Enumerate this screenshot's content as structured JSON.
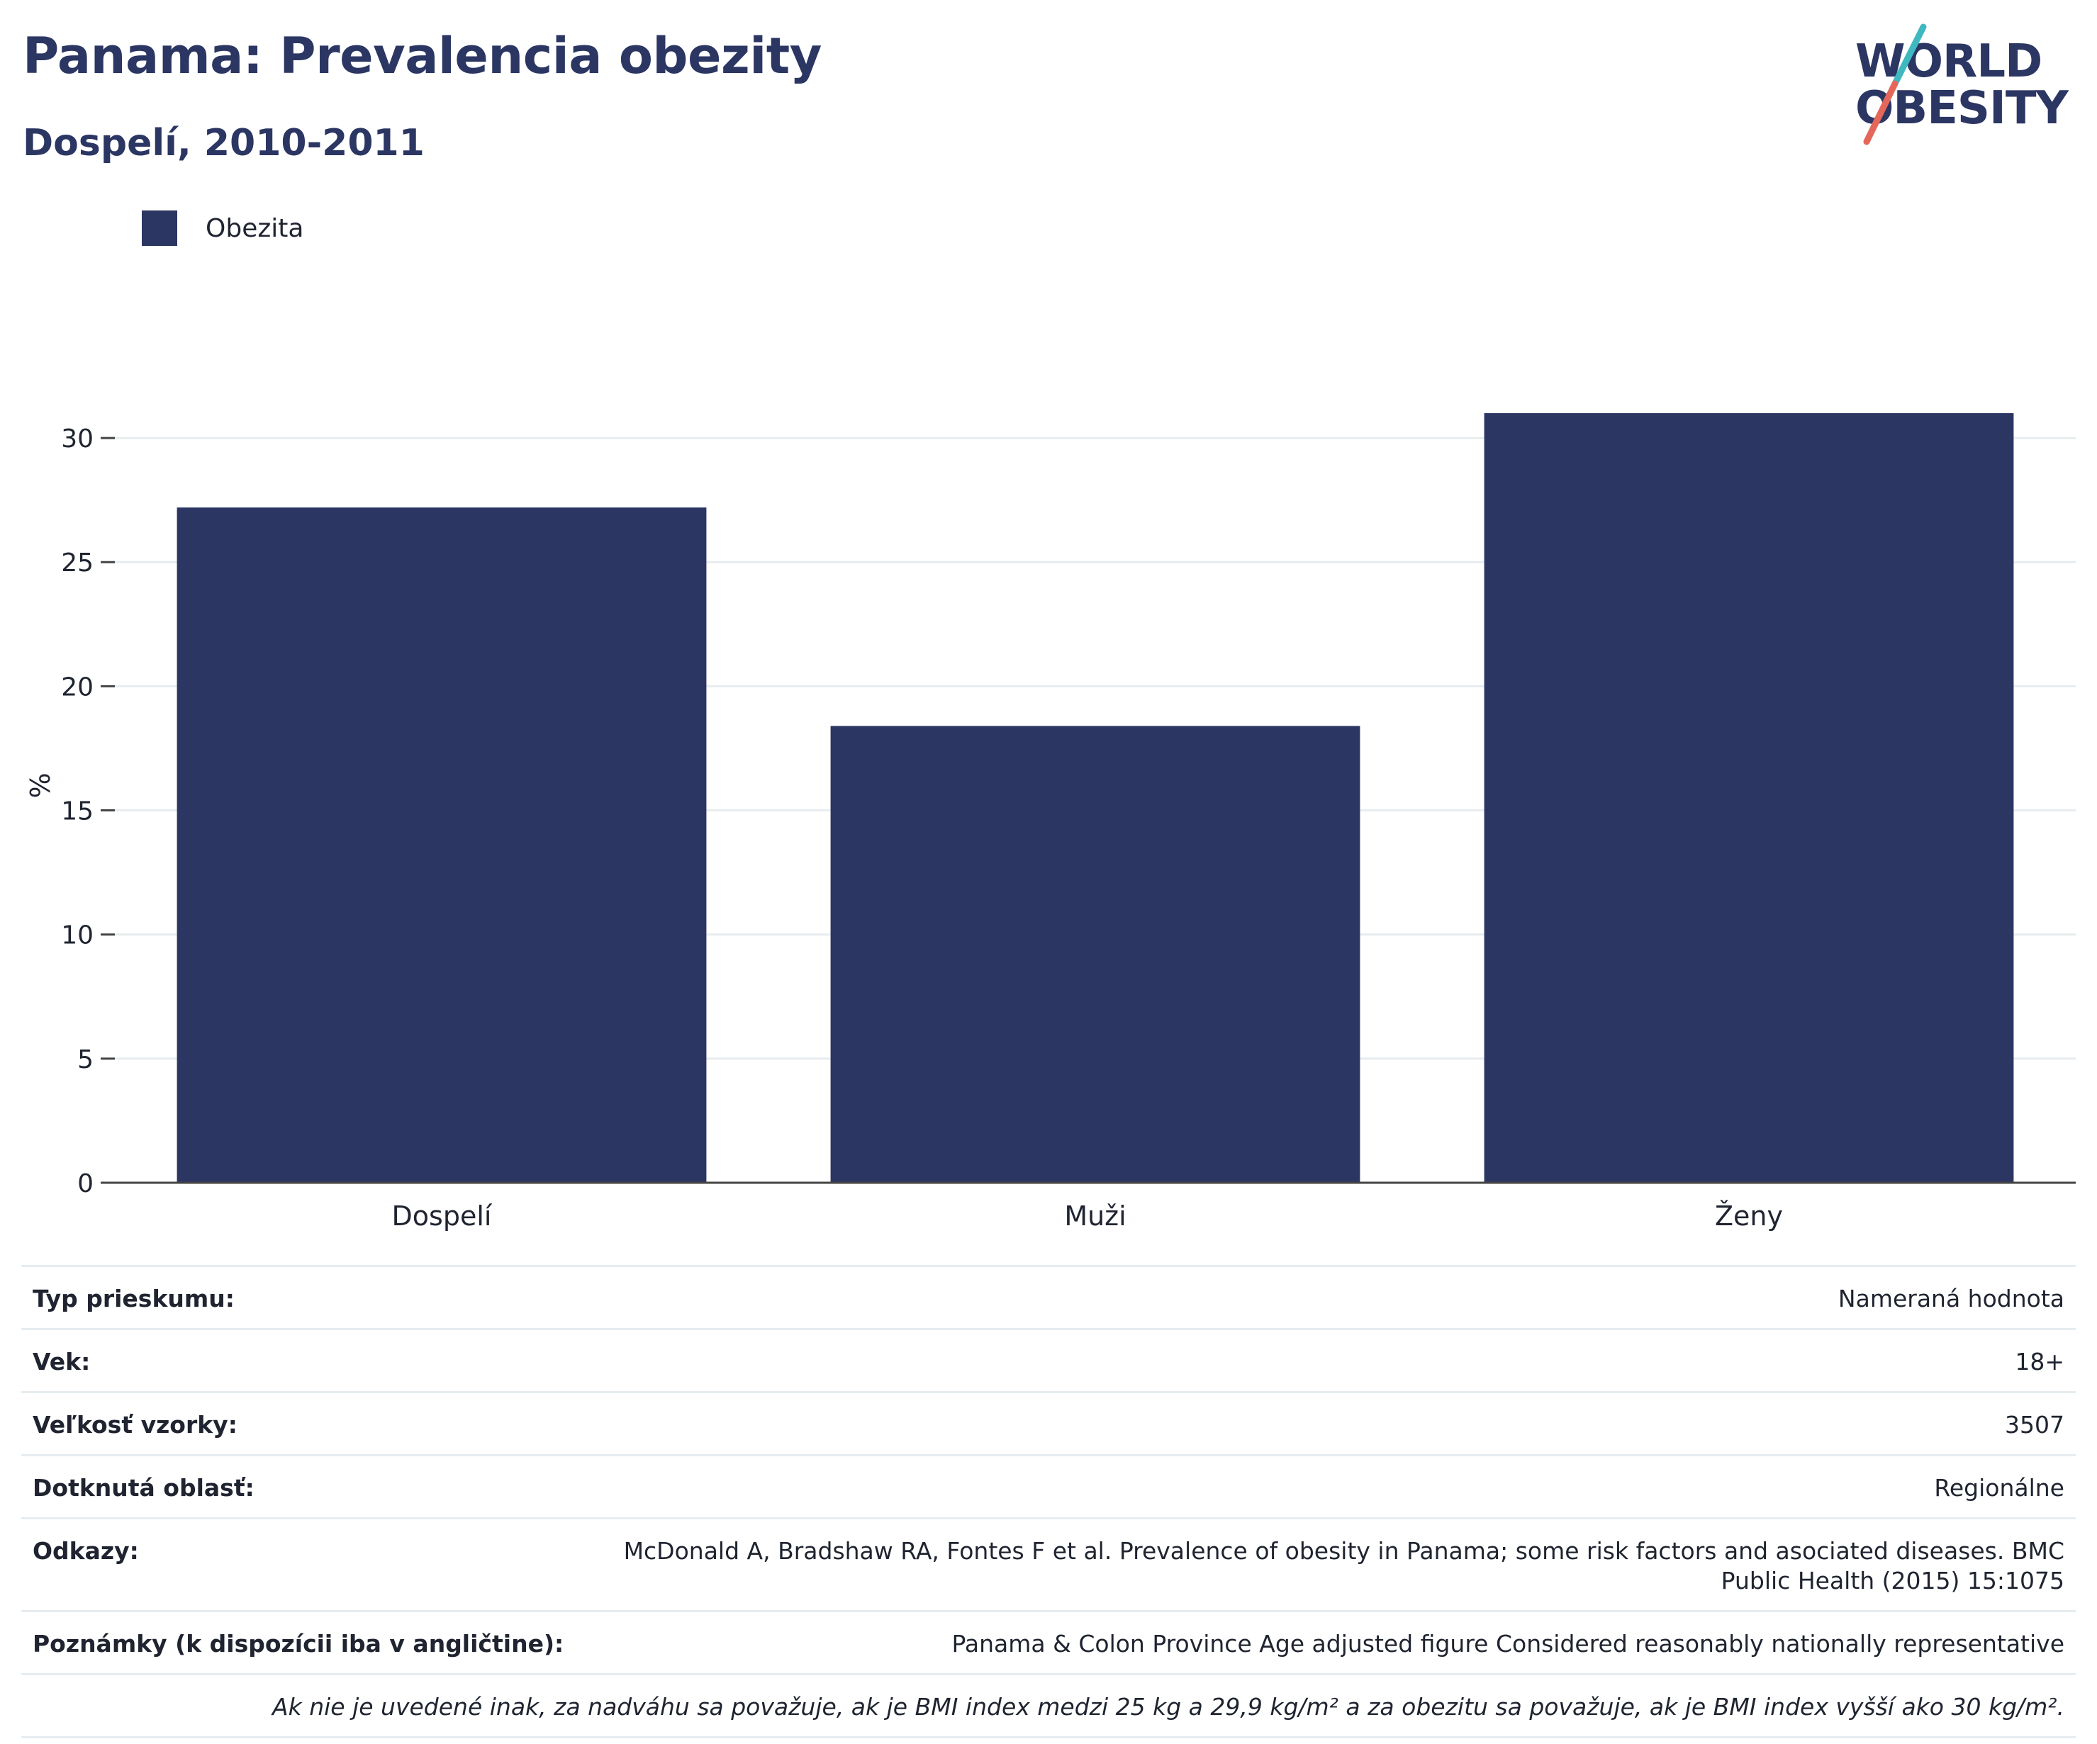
{
  "header": {
    "title": "Panama: Prevalencia obezity",
    "subtitle": "Dospelí, 2010-2011"
  },
  "logo": {
    "line1": "WORLD",
    "line2": "OBESITY"
  },
  "legend": {
    "label": "Obezita",
    "color": "#2b3663"
  },
  "chart_data": {
    "type": "bar",
    "categories": [
      "Dospelí",
      "Muži",
      "Ženy"
    ],
    "series": [
      {
        "name": "Obezita",
        "values": [
          27.2,
          18.4,
          31.0
        ],
        "color": "#2b3663"
      }
    ],
    "ylabel": "%",
    "xlabel": "",
    "ylim": [
      0,
      32
    ],
    "yticks": [
      0,
      5,
      10,
      15,
      20,
      25,
      30
    ],
    "grid": true,
    "legend_position": "top-left"
  },
  "info": {
    "rows": [
      {
        "label": "Typ prieskumu:",
        "value": "Nameraná hodnota"
      },
      {
        "label": "Vek:",
        "value": "18+"
      },
      {
        "label": "Veľkosť vzorky:",
        "value": "3507"
      },
      {
        "label": "Dotknutá oblasť:",
        "value": "Regionálne"
      },
      {
        "label": "Odkazy:",
        "value": "McDonald A, Bradshaw RA, Fontes F et al. Prevalence of obesity in Panama; some risk factors and asociated diseases. BMC Public Health (2015) 15:1075"
      },
      {
        "label": "Poznámky (k dispozícii iba v angličtine):",
        "value": "Panama & Colon Province Age adjusted figure Considered reasonably nationally representative"
      }
    ],
    "footnote": "Ak nie je uvedené inak, za nadváhu sa považuje, ak je BMI index medzi 25 kg a 29,9 kg/m² a za obezitu sa považuje, ak je BMI index vyšší ako 30 kg/m²."
  }
}
